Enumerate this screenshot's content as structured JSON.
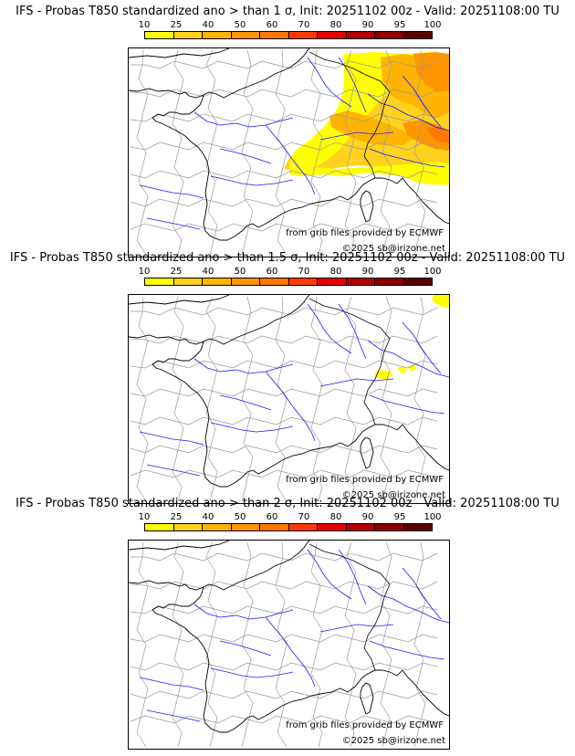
{
  "panels": [
    {
      "title": "IFS - Probas T850  standardized ano > than 1 σ, Init: 20251102 00z - Valid: 20251108:00 TU",
      "threshold": "1 σ",
      "coverage_level": "high"
    },
    {
      "title": "IFS - Probas T850  standardized ano > than 1.5 σ, Init: 20251102 00z - Valid: 20251108:00 TU",
      "threshold": "1.5 σ",
      "coverage_level": "low"
    },
    {
      "title": "IFS - Probas T850  standardized ano > than 2 σ, Init: 20251102 00z - Valid: 20251108:00 TU",
      "threshold": "2 σ",
      "coverage_level": "none"
    }
  ],
  "legend": {
    "labels": [
      "10",
      "25",
      "40",
      "50",
      "60",
      "70",
      "80",
      "90",
      "95",
      "100"
    ],
    "colors": [
      "#ffff00",
      "#ffd21e",
      "#ffb400",
      "#ff9600",
      "#ff7800",
      "#ff3c00",
      "#e60000",
      "#b40000",
      "#8c0000",
      "#5a0000"
    ]
  },
  "credits": {
    "grib": "from grib files provided by ECMWF",
    "copyright": "©2025 sb@irizone.net"
  },
  "colors": {
    "coast": "#000000",
    "rivers": "#1a1aff",
    "borders": "#9a9a9a"
  }
}
